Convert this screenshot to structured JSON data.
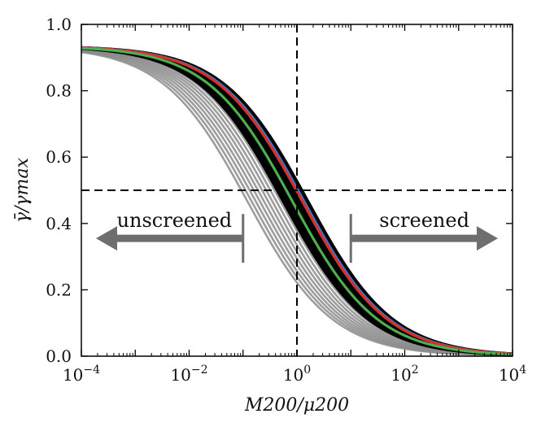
{
  "chart_data": {
    "type": "line",
    "title": "",
    "xlabel": "M200/μ200",
    "ylabel": "γ̄/γmax",
    "xscale": "log",
    "xlim": [
      0.0001,
      10000
    ],
    "ylim": [
      0.0,
      1.0
    ],
    "x_ticks": [
      {
        "value": 0.0001,
        "base": "10",
        "exp": "−4"
      },
      {
        "value": 0.01,
        "base": "10",
        "exp": "−2"
      },
      {
        "value": 1,
        "base": "10",
        "exp": "0"
      },
      {
        "value": 100,
        "base": "10",
        "exp": "2"
      },
      {
        "value": 10000,
        "base": "10",
        "exp": "4"
      }
    ],
    "y_ticks": [
      "0.0",
      "0.2",
      "0.4",
      "0.6",
      "0.8",
      "1.0"
    ],
    "grid": false,
    "colors": {
      "black": "#000000",
      "gray": "#8c8c8c",
      "blue": "#3a78c4",
      "red": "#d7302a",
      "green": "#4caf50",
      "arrow": "#6e6e6e"
    },
    "series": [
      {
        "name": "gray-curves",
        "color": "#8c8c8c",
        "ymax": 0.935,
        "x_half_range": [
          0.12,
          1.2
        ],
        "slope": 0.55
      },
      {
        "name": "black-curves",
        "color": "#000000",
        "ymax": 0.935,
        "x_half_range": [
          0.55,
          1.6
        ],
        "slope": 0.55
      },
      {
        "name": "blue",
        "color": "#3a78c4",
        "ymax": 0.935,
        "x_half": 1.35,
        "slope": 0.55
      },
      {
        "name": "red",
        "color": "#d7302a",
        "ymax": 0.935,
        "x_half": 1.25,
        "slope": 0.55
      },
      {
        "name": "green",
        "color": "#4caf50",
        "ymax": 0.935,
        "x_half": 0.82,
        "slope": 0.55
      }
    ],
    "reference_lines": [
      {
        "orientation": "vertical",
        "x": 1,
        "style": "dashed"
      },
      {
        "orientation": "horizontal",
        "y": 0.5,
        "style": "dashed"
      }
    ],
    "annotations": [
      {
        "text": "unscreened",
        "arrow": "left",
        "x_from": 0.1,
        "x_to": 0.0001,
        "y": 0.355
      },
      {
        "text": "screened",
        "arrow": "right",
        "x_from": 10,
        "x_to": 10000,
        "y": 0.355
      }
    ]
  }
}
